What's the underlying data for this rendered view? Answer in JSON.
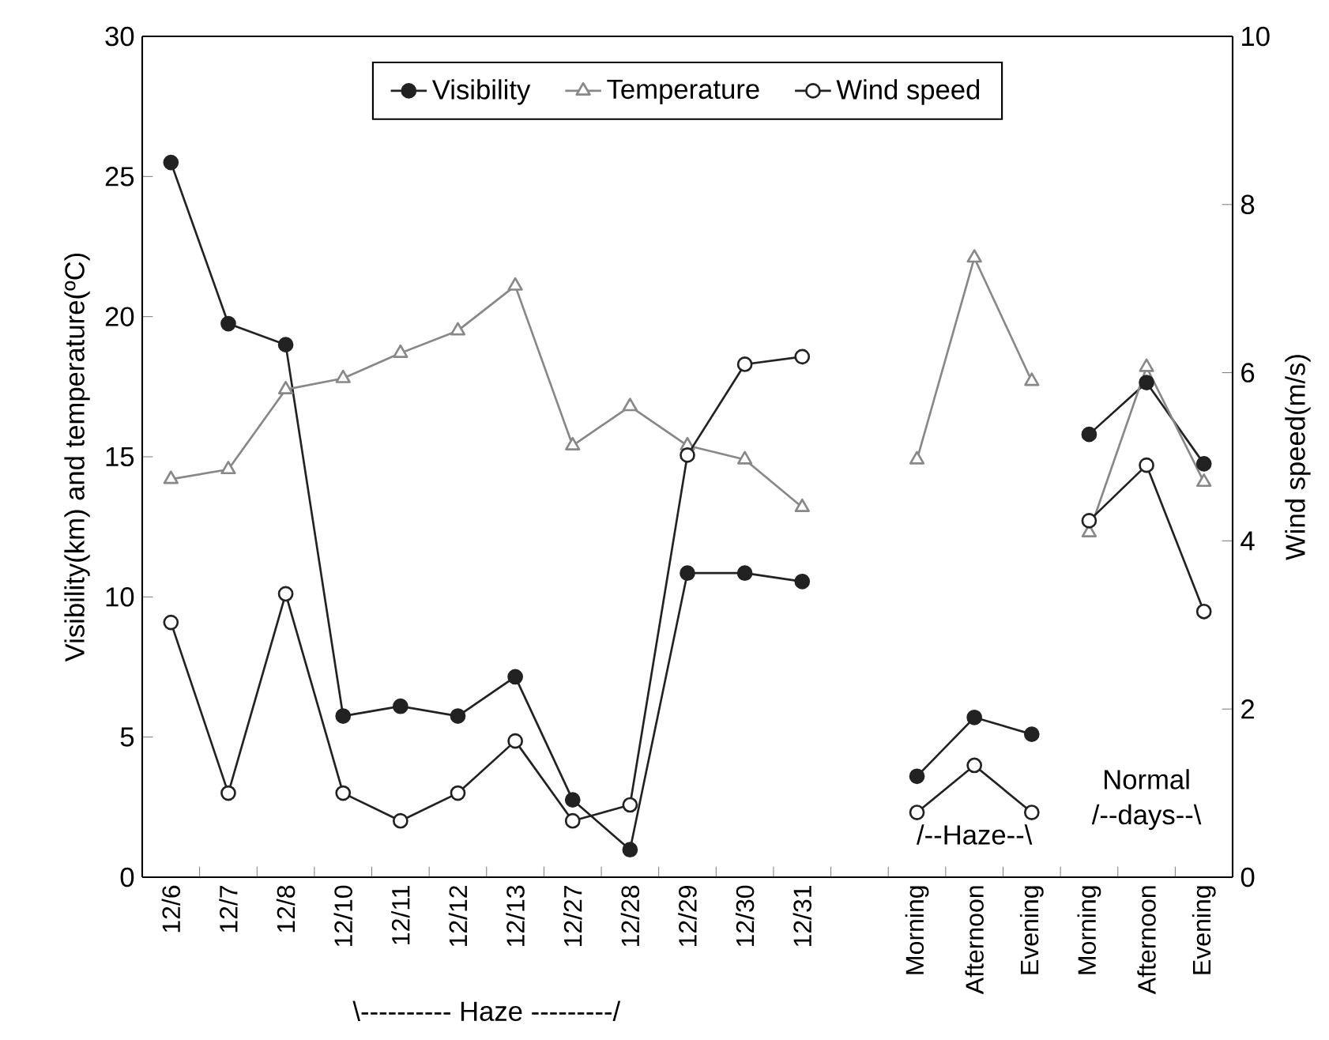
{
  "chart_data": {
    "type": "line",
    "ylabel": "Visibility(km) and temperature(ºC)",
    "y2label": "Wind speed(m/s)",
    "categories": [
      "12/6",
      "12/7",
      "12/8",
      "12/10",
      "12/11",
      "12/12",
      "12/13",
      "12/27",
      "12/28",
      "12/29",
      "12/30",
      "12/31",
      null,
      "Morning",
      "Afternoon",
      "Evening",
      "Morning",
      "Afternoon",
      "Evening"
    ],
    "ylim": [
      0,
      30
    ],
    "yticks": [
      0,
      5,
      10,
      15,
      20,
      25,
      30
    ],
    "y2lim": [
      0,
      10
    ],
    "y2ticks": [
      0,
      2,
      4,
      6,
      8,
      10
    ],
    "legend": "top",
    "grid": false,
    "line_style": "solid",
    "series": [
      {
        "name": "Visibility",
        "color": "#222222",
        "marker": "circle",
        "values": [
          25.5,
          19.75,
          19.0,
          5.75,
          6.1,
          5.75,
          7.15,
          2.76,
          0.98,
          10.85,
          10.85,
          10.55,
          null,
          null,
          null,
          null,
          null,
          null,
          null
        ]
      },
      {
        "name": "Temperature",
        "color": "#888888",
        "marker": "triangle",
        "values": [
          14.2,
          14.55,
          17.4,
          17.8,
          18.7,
          19.5,
          21.1,
          15.4,
          16.8,
          15.4,
          14.9,
          13.2,
          null,
          null,
          null,
          null,
          null,
          null,
          null
        ]
      },
      {
        "name": "Wind speed",
        "color": "#222222",
        "marker": "circle",
        "axis": "y2",
        "values": [
          3.03,
          1.0,
          3.37,
          1.0,
          0.67,
          1.0,
          1.62,
          0.67,
          0.86,
          5.02,
          6.1,
          6.19,
          null,
          null,
          null,
          null,
          null,
          null,
          null
        ]
      },
      {
        "color": "#222222",
        "marker": "circle",
        "values": [
          null,
          null,
          null,
          null,
          null,
          null,
          null,
          null,
          null,
          null,
          null,
          null,
          null,
          3.6,
          5.7,
          5.1,
          null,
          null,
          null
        ]
      },
      {
        "color": "#888888",
        "marker": "triangle",
        "values": [
          null,
          null,
          null,
          null,
          null,
          null,
          null,
          null,
          null,
          null,
          null,
          null,
          null,
          14.9,
          22.1,
          17.7,
          null,
          null,
          null
        ]
      },
      {
        "color": "#222222",
        "marker": "circle",
        "axis": "y2",
        "values": [
          null,
          null,
          null,
          null,
          null,
          null,
          null,
          null,
          null,
          null,
          null,
          null,
          null,
          0.77,
          1.33,
          0.77,
          null,
          null,
          null
        ]
      },
      {
        "color": "#222222",
        "marker": "circle",
        "values": [
          null,
          null,
          null,
          null,
          null,
          null,
          null,
          null,
          null,
          null,
          null,
          null,
          null,
          null,
          null,
          null,
          15.8,
          17.65,
          14.75
        ]
      },
      {
        "color": "#888888",
        "marker": "triangle",
        "values": [
          null,
          null,
          null,
          null,
          null,
          null,
          null,
          null,
          null,
          null,
          null,
          null,
          null,
          null,
          null,
          null,
          12.3,
          18.2,
          14.1
        ]
      },
      {
        "color": "#222222",
        "marker": "circle",
        "axis": "y2",
        "values": [
          null,
          null,
          null,
          null,
          null,
          null,
          null,
          null,
          null,
          null,
          null,
          null,
          null,
          null,
          null,
          null,
          4.24,
          4.9,
          3.16
        ]
      }
    ],
    "annotations": [
      "\\---------- Haze ---------/",
      "/--Haze--\\",
      "Normal",
      "/--days--\\"
    ]
  }
}
